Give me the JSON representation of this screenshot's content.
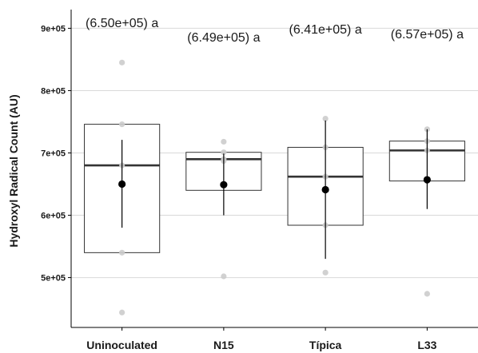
{
  "chart_data": {
    "type": "box",
    "xlabel": "",
    "ylabel": "Hydroxyl Radical Count (AU)",
    "ylim": [
      420000,
      930000
    ],
    "y_ticks": [
      {
        "value": 500000,
        "label": "5e+05"
      },
      {
        "value": 600000,
        "label": "6e+05"
      },
      {
        "value": 700000,
        "label": "7e+05"
      },
      {
        "value": 800000,
        "label": "8e+05"
      },
      {
        "value": 900000,
        "label": "9e+05"
      }
    ],
    "grid": true,
    "categories": [
      "Uninoculated",
      "N15",
      "Típica",
      "L33"
    ],
    "groups": [
      {
        "category": "Uninoculated",
        "annotation": "(6.50e+05) a",
        "q1": 540000,
        "median": 680000,
        "q3": 746000,
        "mean": 650000,
        "sd_low": 580000,
        "sd_high": 721000,
        "points": [
          845000,
          746000,
          680000,
          540000,
          444000
        ]
      },
      {
        "category": "N15",
        "annotation": "(6.49e+05) a",
        "q1": 640000,
        "median": 690000,
        "q3": 701000,
        "mean": 649000,
        "sd_low": 600000,
        "sd_high": 699000,
        "points": [
          718000,
          701000,
          690000,
          687000,
          502000
        ]
      },
      {
        "category": "Típica",
        "annotation": "(6.41e+05) a",
        "q1": 584000,
        "median": 662000,
        "q3": 709000,
        "mean": 641000,
        "sd_low": 530000,
        "sd_high": 752000,
        "points": [
          755000,
          709000,
          662000,
          584000,
          508000
        ]
      },
      {
        "category": "L33",
        "annotation": "(6.57e+05) a",
        "q1": 655000,
        "median": 704000,
        "q3": 719000,
        "mean": 657000,
        "sd_low": 610000,
        "sd_high": 738000,
        "points": [
          738000,
          719000,
          704000,
          655000,
          474000
        ]
      }
    ],
    "colors": {
      "box_stroke": "#333333",
      "median": "#333333",
      "mean_point": "#000000",
      "error_bar": "#000000",
      "raw_point": "#cccccc",
      "grid": "#d9d9d9",
      "axis": "#000000"
    }
  }
}
